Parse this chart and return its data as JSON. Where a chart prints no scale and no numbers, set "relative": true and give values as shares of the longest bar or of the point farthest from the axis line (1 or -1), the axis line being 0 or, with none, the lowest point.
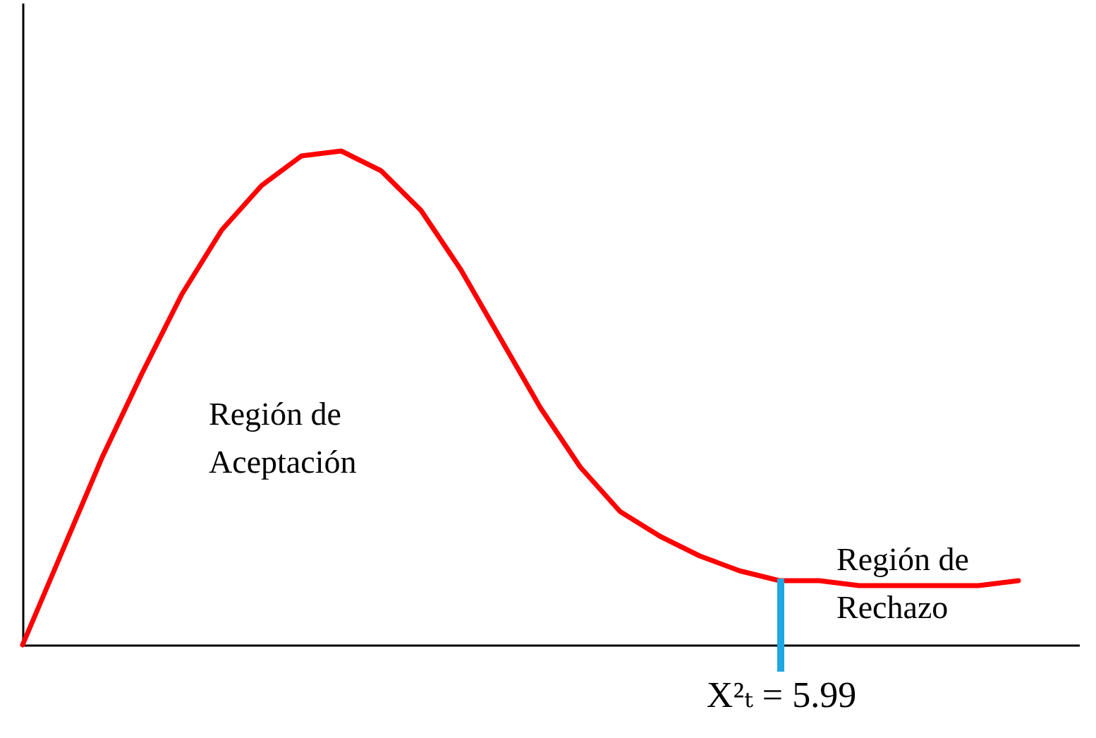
{
  "chart_data": {
    "type": "line",
    "relative": true,
    "marker": "none",
    "line_style": "solid",
    "categories": [
      null,
      null,
      null,
      null,
      null,
      null,
      null,
      null,
      null,
      null,
      null,
      null,
      null,
      null,
      null,
      null,
      null,
      null,
      null,
      null,
      null,
      null,
      null,
      null,
      null,
      null
    ],
    "series": [
      {
        "color": "#ff0000",
        "values": [
          0,
          0.19,
          0.38,
          0.55,
          0.71,
          0.84,
          0.93,
          0.99,
          1,
          0.96,
          0.88,
          0.76,
          0.62,
          0.48,
          0.36,
          0.27,
          0.22,
          0.18,
          0.15,
          0.13,
          0.13,
          0.12,
          0.12,
          0.12,
          0.12,
          0.13
        ]
      }
    ],
    "annotations": [
      "Región de\nAceptación",
      "Región de\nRechazo",
      "X²ₜ = 5.99"
    ]
  }
}
